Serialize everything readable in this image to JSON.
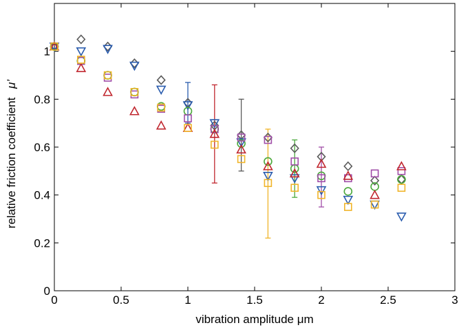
{
  "chart_data": {
    "type": "scatter",
    "xlabel": "vibration amplitude μm",
    "ylabel": "relative friction coefficient",
    "ylabel_symbol": "μ’",
    "xlim": [
      0,
      3
    ],
    "ylim": [
      0,
      1.2
    ],
    "xticks": [
      0,
      0.5,
      1,
      1.5,
      2,
      2.5,
      3
    ],
    "xtick_labels": [
      "0",
      "0.5",
      "1",
      "1.5",
      "2",
      "2.5",
      "3"
    ],
    "yticks": [
      0,
      0.2,
      0.4,
      0.6,
      0.8,
      1
    ],
    "ytick_labels": [
      "0",
      "0.2",
      "0.4",
      "0.6",
      "0.8",
      "1"
    ],
    "grid": false,
    "series": [
      {
        "marker": "diamond",
        "color": "#5a5a5a",
        "points": [
          [
            0,
            1.02
          ],
          [
            0.2,
            1.05
          ],
          [
            0.4,
            1.02
          ],
          [
            0.6,
            0.95
          ],
          [
            0.8,
            0.88
          ],
          [
            1.0,
            0.785
          ],
          [
            1.2,
            0.69
          ],
          [
            1.4,
            0.65
          ],
          [
            1.6,
            0.64
          ],
          [
            1.8,
            0.595
          ],
          [
            2.0,
            0.56
          ],
          [
            2.2,
            0.52
          ],
          [
            2.4,
            0.46
          ],
          [
            2.6,
            0.465
          ]
        ],
        "errors": [
          [
            1.4,
            0.5,
            0.8
          ]
        ]
      },
      {
        "marker": "triangle-down",
        "color": "#2a5cae",
        "points": [
          [
            0,
            1.02
          ],
          [
            0.2,
            1.0
          ],
          [
            0.4,
            1.01
          ],
          [
            0.6,
            0.94
          ],
          [
            0.8,
            0.84
          ],
          [
            1.0,
            0.775
          ],
          [
            1.2,
            0.7
          ],
          [
            1.4,
            0.62
          ],
          [
            1.6,
            0.48
          ],
          [
            1.8,
            0.47
          ],
          [
            2.0,
            0.42
          ],
          [
            2.2,
            0.38
          ],
          [
            2.4,
            0.36
          ],
          [
            2.6,
            0.31
          ]
        ],
        "errors": [
          [
            1.0,
            0.7,
            0.87
          ]
        ]
      },
      {
        "marker": "circle",
        "color": "#4aa83a",
        "points": [
          [
            0,
            1.02
          ],
          [
            0.2,
            0.96
          ],
          [
            0.4,
            0.9
          ],
          [
            0.6,
            0.83
          ],
          [
            0.8,
            0.77
          ],
          [
            1.0,
            0.75
          ],
          [
            1.2,
            0.675
          ],
          [
            1.4,
            0.615
          ],
          [
            1.6,
            0.54
          ],
          [
            1.8,
            0.51
          ],
          [
            2.0,
            0.48
          ],
          [
            2.2,
            0.415
          ],
          [
            2.4,
            0.435
          ],
          [
            2.6,
            0.465
          ]
        ],
        "errors": [
          [
            1.8,
            0.39,
            0.63
          ]
        ]
      },
      {
        "marker": "square",
        "color": "#a04ea8",
        "points": [
          [
            0,
            1.02
          ],
          [
            0.2,
            0.96
          ],
          [
            0.4,
            0.89
          ],
          [
            0.6,
            0.82
          ],
          [
            0.8,
            0.76
          ],
          [
            1.0,
            0.72
          ],
          [
            1.2,
            0.675
          ],
          [
            1.4,
            0.64
          ],
          [
            1.6,
            0.63
          ],
          [
            1.8,
            0.54
          ],
          [
            2.0,
            0.47
          ],
          [
            2.2,
            0.47
          ],
          [
            2.4,
            0.49
          ],
          [
            2.6,
            0.5
          ]
        ],
        "errors": [
          [
            2.0,
            0.35,
            0.6
          ]
        ]
      },
      {
        "marker": "triangle-up",
        "color": "#c0262e",
        "points": [
          [
            0,
            1.02
          ],
          [
            0.2,
            0.93
          ],
          [
            0.4,
            0.83
          ],
          [
            0.6,
            0.75
          ],
          [
            0.8,
            0.69
          ],
          [
            1.0,
            0.68
          ],
          [
            1.2,
            0.655
          ],
          [
            1.4,
            0.59
          ],
          [
            1.6,
            0.52
          ],
          [
            1.8,
            0.49
          ],
          [
            2.0,
            0.53
          ],
          [
            2.2,
            0.48
          ],
          [
            2.4,
            0.4
          ],
          [
            2.6,
            0.52
          ]
        ],
        "errors": [
          [
            1.2,
            0.45,
            0.86
          ]
        ]
      },
      {
        "marker": "square",
        "color": "#f0b429",
        "points": [
          [
            0,
            1.02
          ],
          [
            0.2,
            0.965
          ],
          [
            0.4,
            0.9
          ],
          [
            0.6,
            0.83
          ],
          [
            0.8,
            0.765
          ],
          [
            1.0,
            0.68
          ],
          [
            1.2,
            0.61
          ],
          [
            1.4,
            0.55
          ],
          [
            1.6,
            0.45
          ],
          [
            1.8,
            0.43
          ],
          [
            2.0,
            0.4
          ],
          [
            2.2,
            0.35
          ],
          [
            2.4,
            0.36
          ],
          [
            2.6,
            0.43
          ]
        ],
        "errors": [
          [
            1.6,
            0.22,
            0.675
          ]
        ]
      }
    ]
  }
}
